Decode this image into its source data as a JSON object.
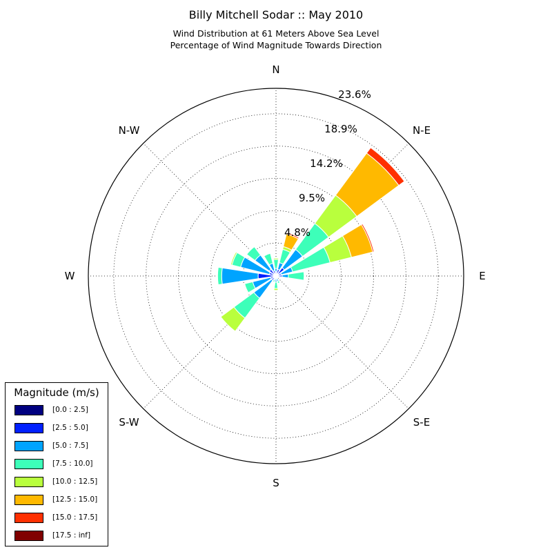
{
  "title": "Billy Mitchell Sodar :: May 2010",
  "subtitle_lines": [
    "Wind Distribution at 61 Meters Above Sea Level",
    "Percentage of Wind Magnitude Towards Direction"
  ],
  "chart_data": {
    "type": "windrose",
    "title": "Billy Mitchell Sodar :: May 2010",
    "subtitle": "Wind Distribution at 61 Meters Above Sea Level / Percentage of Wind Magnitude Towards Direction",
    "directions": [
      "N",
      "NNE",
      "NE",
      "ENE",
      "E",
      "ESE",
      "SE",
      "SSE",
      "S",
      "SSW",
      "SW",
      "WSW",
      "W",
      "WNW",
      "NW",
      "NNW"
    ],
    "angles_deg": [
      0,
      22.5,
      45,
      67.5,
      90,
      112.5,
      135,
      157.5,
      180,
      202.5,
      225,
      247.5,
      270,
      292.5,
      315,
      337.5
    ],
    "direction_labels": [
      "N",
      "N-E",
      "E",
      "S-E",
      "S",
      "S-W",
      "W",
      "N-W"
    ],
    "radial_ticks": [
      "4.8%",
      "9.5%",
      "14.2%",
      "18.9%",
      "23.6%"
    ],
    "radial_tick_values": [
      4.8,
      9.5,
      14.2,
      18.9,
      23.6
    ],
    "rmax": 27.3,
    "legend_title": "Magnitude (m/s)",
    "legend_position": "lower-left",
    "grid": true,
    "bins": [
      {
        "label": "[0.0 : 2.5]",
        "color": "#000080"
      },
      {
        "label": "[2.5 : 5.0]",
        "color": "#0020ff"
      },
      {
        "label": "[5.0 : 7.5]",
        "color": "#00a4ff"
      },
      {
        "label": "[7.5 : 10.0]",
        "color": "#3dffb9"
      },
      {
        "label": "[10.0 : 12.5]",
        "color": "#b9ff3d"
      },
      {
        "label": "[12.5 : 15.0]",
        "color": "#ffb900"
      },
      {
        "label": "[15.0 : 17.5]",
        "color": "#ff3000"
      },
      {
        "label": "[17.5 : inf]",
        "color": "#800000"
      }
    ],
    "cumulative_percent": [
      [
        0.2,
        0.6,
        1.1,
        2.4,
        2.6,
        2.6,
        2.6,
        2.6
      ],
      [
        0.3,
        1.0,
        2.0,
        4.0,
        4.4,
        6.3,
        6.5,
        6.5
      ],
      [
        0.3,
        1.5,
        4.8,
        9.5,
        14.6,
        22.2,
        23.2,
        23.3
      ],
      [
        0.2,
        0.8,
        2.5,
        8.1,
        11.3,
        14.5,
        14.7,
        14.7
      ],
      [
        0.3,
        0.9,
        1.8,
        4.1,
        4.1,
        4.1,
        4.1,
        4.1
      ],
      [
        0.1,
        0.4,
        0.6,
        0.7,
        0.7,
        0.7,
        0.7,
        0.7
      ],
      [
        0.1,
        0.2,
        0.3,
        0.4,
        0.4,
        0.4,
        0.4,
        0.4
      ],
      [
        0.1,
        0.3,
        0.8,
        1.1,
        1.1,
        1.1,
        1.1,
        1.1
      ],
      [
        0.1,
        0.4,
        0.9,
        1.8,
        2.1,
        2.1,
        2.1,
        2.1
      ],
      [
        0.1,
        0.4,
        0.6,
        0.9,
        1.0,
        1.0,
        1.0,
        1.0
      ],
      [
        0.2,
        0.8,
        4.0,
        7.6,
        10.0,
        10.0,
        10.0,
        10.0
      ],
      [
        0.2,
        0.8,
        3.5,
        4.7,
        4.8,
        4.8,
        4.8,
        4.8
      ],
      [
        0.4,
        2.6,
        7.9,
        8.5,
        8.5,
        8.5,
        8.5,
        8.5
      ],
      [
        0.3,
        1.0,
        5.3,
        6.6,
        6.8,
        6.8,
        6.8,
        6.8
      ],
      [
        0.3,
        1.2,
        3.8,
        5.3,
        5.3,
        5.3,
        5.3,
        5.3
      ],
      [
        0.2,
        0.8,
        1.9,
        3.4,
        3.4,
        3.4,
        3.4,
        3.4
      ]
    ]
  }
}
